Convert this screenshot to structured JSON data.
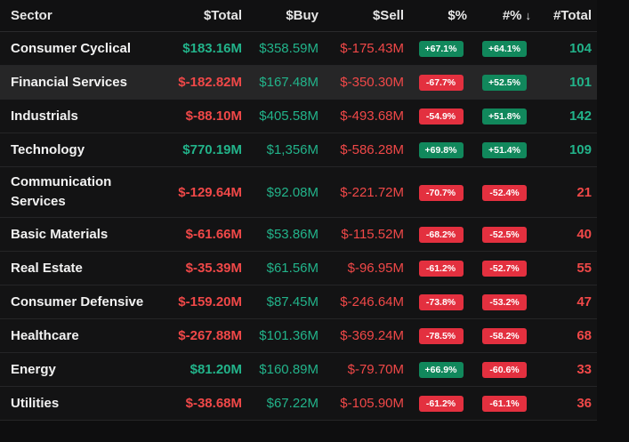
{
  "columns": {
    "sector": "Sector",
    "total": "$Total",
    "buy": "$Buy",
    "sell": "$Sell",
    "pct": "$%",
    "count_pct": "#%",
    "count_total": "#Total",
    "sort_icon": "↓"
  },
  "colors": {
    "positive": "#22b38a",
    "negative": "#f04848",
    "pill_positive": "#11885c",
    "pill_negative": "#e3303f"
  },
  "rows": [
    {
      "sector": "Consumer Cyclical",
      "total": "$183.16M",
      "total_sign": "pos",
      "buy": "$358.59M",
      "sell": "$-175.43M",
      "pct": "+67.1%",
      "pct_sign": "pos",
      "count_pct": "+64.1%",
      "count_pct_sign": "pos",
      "count_total": "104",
      "count_sign": "pos"
    },
    {
      "sector": "Financial Services",
      "total": "$-182.82M",
      "total_sign": "neg",
      "buy": "$167.48M",
      "sell": "$-350.30M",
      "pct": "-67.7%",
      "pct_sign": "neg",
      "count_pct": "+52.5%",
      "count_pct_sign": "pos",
      "count_total": "101",
      "count_sign": "pos"
    },
    {
      "sector": "Industrials",
      "total": "$-88.10M",
      "total_sign": "neg",
      "buy": "$405.58M",
      "sell": "$-493.68M",
      "pct": "-54.9%",
      "pct_sign": "neg",
      "count_pct": "+51.8%",
      "count_pct_sign": "pos",
      "count_total": "142",
      "count_sign": "pos"
    },
    {
      "sector": "Technology",
      "total": "$770.19M",
      "total_sign": "pos",
      "buy": "$1,356M",
      "sell": "$-586.28M",
      "pct": "+69.8%",
      "pct_sign": "pos",
      "count_pct": "+51.4%",
      "count_pct_sign": "pos",
      "count_total": "109",
      "count_sign": "pos"
    },
    {
      "sector": "Communication Services",
      "total": "$-129.64M",
      "total_sign": "neg",
      "buy": "$92.08M",
      "sell": "$-221.72M",
      "pct": "-70.7%",
      "pct_sign": "neg",
      "count_pct": "-52.4%",
      "count_pct_sign": "neg",
      "count_total": "21",
      "count_sign": "neg"
    },
    {
      "sector": "Basic Materials",
      "total": "$-61.66M",
      "total_sign": "neg",
      "buy": "$53.86M",
      "sell": "$-115.52M",
      "pct": "-68.2%",
      "pct_sign": "neg",
      "count_pct": "-52.5%",
      "count_pct_sign": "neg",
      "count_total": "40",
      "count_sign": "neg"
    },
    {
      "sector": "Real Estate",
      "total": "$-35.39M",
      "total_sign": "neg",
      "buy": "$61.56M",
      "sell": "$-96.95M",
      "pct": "-61.2%",
      "pct_sign": "neg",
      "count_pct": "-52.7%",
      "count_pct_sign": "neg",
      "count_total": "55",
      "count_sign": "neg"
    },
    {
      "sector": "Consumer Defensive",
      "total": "$-159.20M",
      "total_sign": "neg",
      "buy": "$87.45M",
      "sell": "$-246.64M",
      "pct": "-73.8%",
      "pct_sign": "neg",
      "count_pct": "-53.2%",
      "count_pct_sign": "neg",
      "count_total": "47",
      "count_sign": "neg"
    },
    {
      "sector": "Healthcare",
      "total": "$-267.88M",
      "total_sign": "neg",
      "buy": "$101.36M",
      "sell": "$-369.24M",
      "pct": "-78.5%",
      "pct_sign": "neg",
      "count_pct": "-58.2%",
      "count_pct_sign": "neg",
      "count_total": "68",
      "count_sign": "neg"
    },
    {
      "sector": "Energy",
      "total": "$81.20M",
      "total_sign": "pos",
      "buy": "$160.89M",
      "sell": "$-79.70M",
      "pct": "+66.9%",
      "pct_sign": "pos",
      "count_pct": "-60.6%",
      "count_pct_sign": "neg",
      "count_total": "33",
      "count_sign": "neg"
    },
    {
      "sector": "Utilities",
      "total": "$-38.68M",
      "total_sign": "neg",
      "buy": "$67.22M",
      "sell": "$-105.90M",
      "pct": "-61.2%",
      "pct_sign": "neg",
      "count_pct": "-61.1%",
      "count_pct_sign": "neg",
      "count_total": "36",
      "count_sign": "neg"
    }
  ]
}
